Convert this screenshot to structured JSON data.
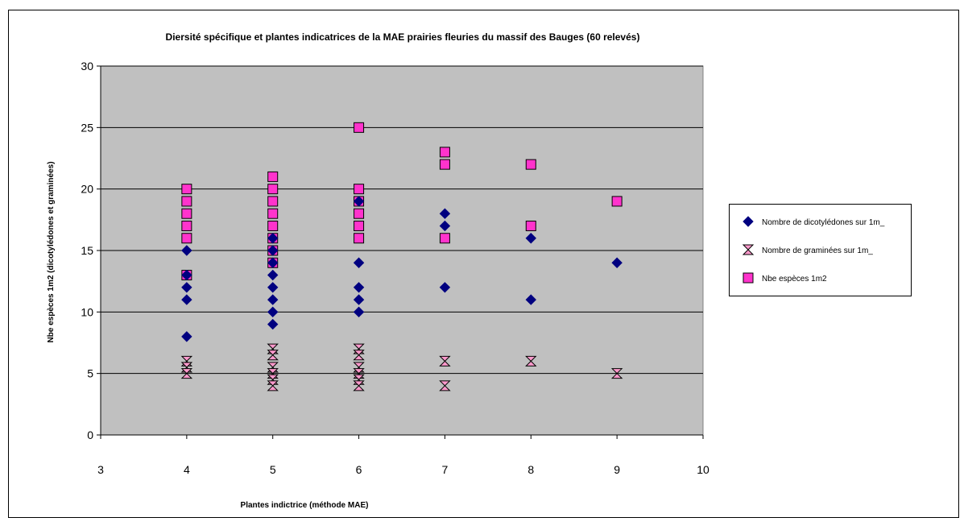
{
  "chart_data": {
    "type": "scatter",
    "title": "Diersité spécifique et plantes indicatrices de la MAE prairies fleuries du massif des Bauges (60 relevés)",
    "xlabel": "Plantes indictrice (méthode MAE)",
    "ylabel": "Nbe espèces 1m2 (dicotylédones et graminées)",
    "xlim": [
      3,
      10
    ],
    "ylim": [
      0,
      30
    ],
    "xticks": [
      "3",
      "4",
      "5",
      "6",
      "7",
      "8",
      "9",
      "10"
    ],
    "yticks": [
      "0",
      "5",
      "10",
      "15",
      "20",
      "25",
      "30"
    ],
    "grid": "horizontal",
    "legend_position": "right",
    "colors": {
      "plot_background": "#c0c0c0",
      "dicot": "#000080",
      "graminees": "#ff99cc",
      "total": "#ff33cc"
    },
    "series": [
      {
        "name": "Nombre de dicotylédones sur 1m_",
        "marker": "diamond",
        "points": [
          [
            4,
            15
          ],
          [
            4,
            13
          ],
          [
            4,
            12
          ],
          [
            4,
            11
          ],
          [
            4,
            8
          ],
          [
            5,
            16
          ],
          [
            5,
            15
          ],
          [
            5,
            14
          ],
          [
            5,
            13
          ],
          [
            5,
            12
          ],
          [
            5,
            11
          ],
          [
            5,
            10
          ],
          [
            5,
            9
          ],
          [
            6,
            19
          ],
          [
            6,
            14
          ],
          [
            6,
            12
          ],
          [
            6,
            11
          ],
          [
            6,
            10
          ],
          [
            7,
            18
          ],
          [
            7,
            17
          ],
          [
            7,
            12
          ],
          [
            8,
            16
          ],
          [
            8,
            11
          ],
          [
            9,
            14
          ]
        ]
      },
      {
        "name": "Nombre de graminées sur 1m_",
        "marker": "hourglass",
        "points": [
          [
            4,
            6
          ],
          [
            4,
            5.5
          ],
          [
            4,
            5
          ],
          [
            5,
            7
          ],
          [
            5,
            6.5
          ],
          [
            5,
            5.5
          ],
          [
            5,
            5
          ],
          [
            5,
            4.5
          ],
          [
            5,
            4
          ],
          [
            6,
            7
          ],
          [
            6,
            6.5
          ],
          [
            6,
            5.5
          ],
          [
            6,
            5
          ],
          [
            6,
            4.5
          ],
          [
            6,
            4
          ],
          [
            7,
            6
          ],
          [
            7,
            4
          ],
          [
            8,
            6
          ],
          [
            9,
            5
          ]
        ]
      },
      {
        "name": "Nbe espèces 1m2",
        "marker": "square",
        "points": [
          [
            4,
            20
          ],
          [
            4,
            19
          ],
          [
            4,
            18
          ],
          [
            4,
            17
          ],
          [
            4,
            16
          ],
          [
            4,
            13
          ],
          [
            5,
            21
          ],
          [
            5,
            20
          ],
          [
            5,
            19
          ],
          [
            5,
            18
          ],
          [
            5,
            17
          ],
          [
            5,
            16
          ],
          [
            5,
            15
          ],
          [
            5,
            14
          ],
          [
            6,
            25
          ],
          [
            6,
            20
          ],
          [
            6,
            19
          ],
          [
            6,
            18
          ],
          [
            6,
            17
          ],
          [
            6,
            16
          ],
          [
            7,
            23
          ],
          [
            7,
            22
          ],
          [
            7,
            16
          ],
          [
            8,
            22
          ],
          [
            8,
            17
          ],
          [
            9,
            19
          ]
        ]
      }
    ]
  }
}
